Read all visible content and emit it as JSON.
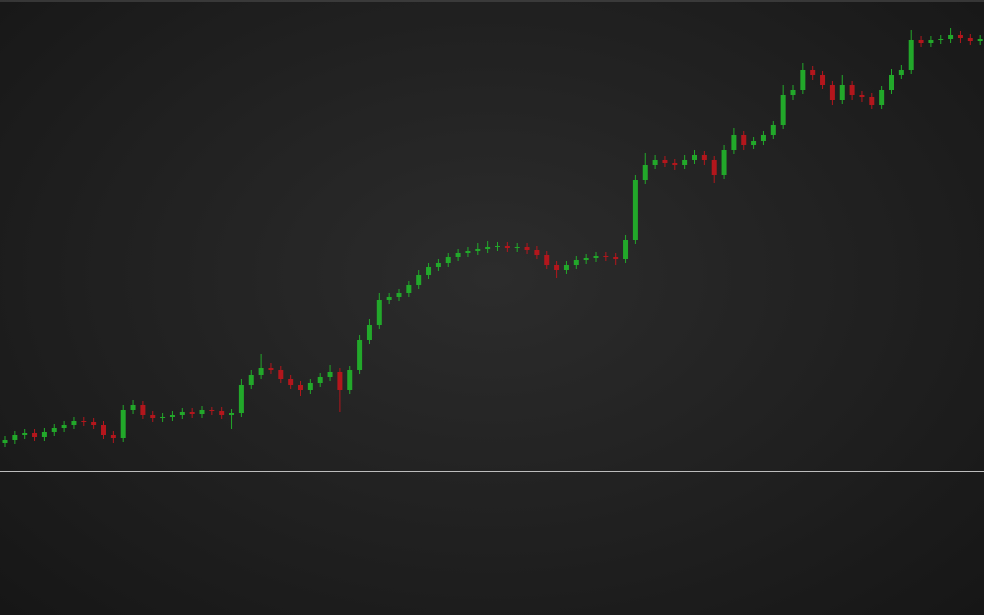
{
  "chart_data": {
    "type": "candlestick",
    "open": [
      172,
      175,
      180,
      182,
      178,
      183,
      187,
      190,
      194,
      193,
      190,
      180,
      177,
      205,
      210,
      200,
      197,
      198,
      200,
      203,
      201,
      205,
      204,
      200,
      202,
      230,
      240,
      247,
      245,
      236,
      230,
      225,
      232,
      238,
      243,
      225,
      245,
      275,
      290,
      315,
      318,
      322,
      330,
      340,
      348,
      352,
      358,
      362,
      364,
      366,
      368,
      369,
      367,
      368,
      365,
      360,
      350,
      345,
      350,
      355,
      357,
      359,
      358,
      356,
      375,
      435,
      450,
      455,
      452,
      450,
      455,
      460,
      455,
      440,
      465,
      480,
      470,
      474,
      480,
      490,
      520,
      525,
      545,
      540,
      530,
      515,
      530,
      520,
      518,
      510,
      525,
      540,
      545,
      575,
      572,
      575,
      576,
      580,
      577,
      574
    ],
    "high": [
      179,
      184,
      186,
      186,
      187,
      191,
      194,
      198,
      198,
      197,
      194,
      184,
      210,
      215,
      214,
      204,
      202,
      204,
      207,
      207,
      209,
      208,
      208,
      206,
      236,
      245,
      261,
      252,
      249,
      240,
      234,
      236,
      242,
      250,
      247,
      249,
      280,
      296,
      322,
      322,
      326,
      334,
      345,
      352,
      356,
      362,
      366,
      368,
      372,
      374,
      373,
      373,
      372,
      372,
      369,
      364,
      354,
      354,
      359,
      361,
      363,
      363,
      362,
      380,
      440,
      462,
      460,
      459,
      456,
      460,
      465,
      464,
      459,
      470,
      487,
      484,
      478,
      484,
      494,
      530,
      530,
      552,
      549,
      544,
      534,
      540,
      534,
      524,
      522,
      529,
      546,
      550,
      585,
      579,
      579,
      580,
      587,
      584,
      581,
      580
    ],
    "low": [
      168,
      171,
      176,
      174,
      174,
      179,
      183,
      186,
      189,
      186,
      176,
      172,
      173,
      201,
      196,
      193,
      193,
      194,
      196,
      197,
      197,
      200,
      196,
      186,
      198,
      226,
      236,
      241,
      232,
      226,
      219,
      221,
      228,
      234,
      203,
      221,
      241,
      271,
      286,
      311,
      314,
      318,
      326,
      336,
      344,
      348,
      354,
      358,
      360,
      362,
      364,
      363,
      363,
      361,
      356,
      346,
      337,
      341,
      346,
      351,
      353,
      354,
      350,
      352,
      371,
      431,
      446,
      448,
      445,
      446,
      451,
      450,
      432,
      436,
      461,
      465,
      466,
      470,
      476,
      486,
      515,
      521,
      535,
      526,
      510,
      511,
      515,
      513,
      506,
      506,
      521,
      536,
      541,
      568,
      568,
      571,
      572,
      572,
      570,
      570
    ],
    "close": [
      175,
      180,
      182,
      178,
      183,
      187,
      190,
      194,
      193,
      190,
      180,
      177,
      205,
      210,
      200,
      197,
      198,
      200,
      203,
      201,
      205,
      204,
      200,
      202,
      230,
      240,
      247,
      245,
      236,
      230,
      225,
      232,
      238,
      243,
      225,
      245,
      275,
      290,
      315,
      318,
      322,
      330,
      340,
      348,
      352,
      358,
      362,
      364,
      366,
      368,
      369,
      367,
      368,
      365,
      360,
      350,
      345,
      350,
      355,
      357,
      359,
      358,
      356,
      375,
      435,
      450,
      455,
      452,
      450,
      455,
      460,
      455,
      440,
      465,
      480,
      470,
      474,
      480,
      490,
      520,
      525,
      545,
      540,
      530,
      515,
      530,
      520,
      518,
      510,
      525,
      540,
      545,
      575,
      572,
      575,
      576,
      580,
      577,
      574,
      576
    ],
    "ylim": [
      0,
      615
    ],
    "up_color": "#22a82a",
    "down_color": "#b3161c"
  }
}
